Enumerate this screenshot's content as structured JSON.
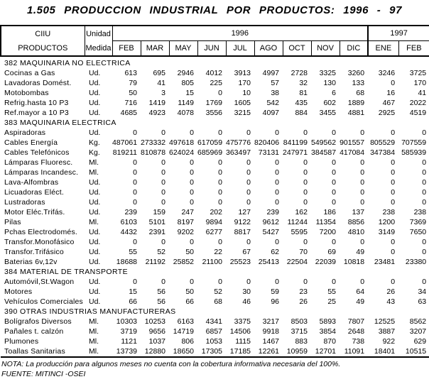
{
  "title": "1.505 PRODUCCION INDUSTRIAL POR PRODUCTOS: 1996 - 97",
  "table": {
    "header": {
      "col_products_line1": "CIIU",
      "col_products_line2": "PRODUCTOS",
      "col_unit_line1": "Unidad",
      "col_unit_line2": "Medida",
      "year_1996": "1996",
      "year_1997": "1997",
      "months_1996": [
        "FEB",
        "MAR",
        "MAY",
        "JUN",
        "JUL",
        "AGO",
        "OCT",
        "NOV",
        "DIC"
      ],
      "months_1997": [
        "ENE",
        "FEB"
      ]
    },
    "rows": [
      {
        "type": "section",
        "label": "382 MAQUINARIA NO ELECTRICA"
      },
      {
        "type": "data",
        "label": "Cocinas a Gas",
        "unit": "Ud.",
        "values": [
          613,
          695,
          2946,
          4012,
          3913,
          4997,
          2728,
          3325,
          3260,
          3246,
          3725
        ]
      },
      {
        "type": "data",
        "label": "Lavadoras Domést.",
        "unit": "Ud.",
        "values": [
          79,
          41,
          805,
          225,
          170,
          57,
          32,
          130,
          133,
          0,
          170
        ]
      },
      {
        "type": "data",
        "label": "Motobombas",
        "unit": "Ud.",
        "values": [
          50,
          3,
          15,
          0,
          10,
          38,
          81,
          6,
          68,
          16,
          41
        ]
      },
      {
        "type": "data",
        "label": "Refrig.hasta 10 P3",
        "unit": "Ud.",
        "values": [
          716,
          1419,
          1149,
          1769,
          1605,
          542,
          435,
          602,
          1889,
          467,
          2022
        ]
      },
      {
        "type": "data",
        "label": "Ref.mayor a 10 P3",
        "unit": "Ud.",
        "values": [
          4685,
          4923,
          4078,
          3556,
          3215,
          4097,
          884,
          3455,
          4881,
          2925,
          4519
        ]
      },
      {
        "type": "section",
        "label": "383 MAQUINARIA ELECTRICA"
      },
      {
        "type": "data",
        "label": "Aspiradoras",
        "unit": "Ud.",
        "values": [
          0,
          0,
          0,
          0,
          0,
          0,
          0,
          0,
          0,
          0,
          0
        ]
      },
      {
        "type": "data",
        "label": "Cables Energía",
        "unit": "Kg.",
        "values": [
          487061,
          273332,
          497618,
          617059,
          475776,
          820406,
          841199,
          549562,
          901557,
          805529,
          707559
        ]
      },
      {
        "type": "data",
        "label": "Cables Telefónicos",
        "unit": "Kg.",
        "values": [
          819211,
          810878,
          624024,
          685969,
          363497,
          73131,
          247971,
          384587,
          417084,
          347384,
          585939
        ]
      },
      {
        "type": "data",
        "label": "Lámparas Fluoresc.",
        "unit": "Ml.",
        "values": [
          0,
          0,
          0,
          0,
          0,
          0,
          0,
          0,
          0,
          0,
          0
        ]
      },
      {
        "type": "data",
        "label": "Lámparas Incandesc.",
        "unit": "Ml.",
        "values": [
          0,
          0,
          0,
          0,
          0,
          0,
          0,
          0,
          0,
          0,
          0
        ]
      },
      {
        "type": "data",
        "label": "Lava-Alfombras",
        "unit": "Ud.",
        "values": [
          0,
          0,
          0,
          0,
          0,
          0,
          0,
          0,
          0,
          0,
          0
        ]
      },
      {
        "type": "data",
        "label": "Licuadoras Eléct.",
        "unit": "Ud.",
        "values": [
          0,
          0,
          0,
          0,
          0,
          0,
          0,
          0,
          0,
          0,
          0
        ]
      },
      {
        "type": "data",
        "label": "Lustradoras",
        "unit": "Ud.",
        "values": [
          0,
          0,
          0,
          0,
          0,
          0,
          0,
          0,
          0,
          0,
          0
        ]
      },
      {
        "type": "data",
        "label": "Motor Eléc.Trifás.",
        "unit": "Ud.",
        "values": [
          239,
          159,
          247,
          202,
          127,
          239,
          162,
          186,
          137,
          238,
          238
        ]
      },
      {
        "type": "data",
        "label": "Pilas",
        "unit": "Ml.",
        "values": [
          6103,
          5101,
          8197,
          9894,
          9122,
          9612,
          11244,
          11354,
          8856,
          1200,
          7369
        ]
      },
      {
        "type": "data",
        "label": "Pchas Electrodomés.",
        "unit": "Ud.",
        "values": [
          4432,
          2391,
          9202,
          6277,
          8817,
          5427,
          5595,
          7200,
          4810,
          3149,
          7650
        ]
      },
      {
        "type": "data",
        "label": "Transfor.Monofásico",
        "unit": "Ud.",
        "values": [
          0,
          0,
          0,
          0,
          0,
          0,
          0,
          0,
          0,
          0,
          0
        ]
      },
      {
        "type": "data",
        "label": "Transfor.Trifásico",
        "unit": "Ud.",
        "values": [
          55,
          52,
          50,
          22,
          67,
          62,
          70,
          69,
          49,
          0,
          0
        ]
      },
      {
        "type": "data",
        "label": "Baterias 6v,12v",
        "unit": "Ud.",
        "values": [
          18688,
          21192,
          25852,
          21100,
          25523,
          25413,
          22504,
          22039,
          10818,
          23481,
          23380
        ]
      },
      {
        "type": "section",
        "label": "384 MATERIAL DE TRANSPORTE"
      },
      {
        "type": "data",
        "label": "Automóvil,St.Wagon",
        "unit": "Ud.",
        "values": [
          0,
          0,
          0,
          0,
          0,
          0,
          0,
          0,
          0,
          0,
          0
        ]
      },
      {
        "type": "data",
        "label": "Motores",
        "unit": "Ud.",
        "values": [
          15,
          56,
          50,
          52,
          30,
          59,
          23,
          55,
          64,
          26,
          34
        ]
      },
      {
        "type": "data",
        "label": "Vehículos Comerciales",
        "unit": "Ud.",
        "values": [
          66,
          56,
          66,
          68,
          46,
          96,
          26,
          25,
          49,
          43,
          63
        ]
      },
      {
        "type": "section",
        "label": "390 OTRAS INDUSTRIAS MANUFACTURERAS"
      },
      {
        "type": "data",
        "label": "Bolígrafos Diversos",
        "unit": "Ml.",
        "values": [
          10303,
          10253,
          6163,
          4341,
          3375,
          3217,
          8503,
          5893,
          7807,
          12525,
          8562
        ]
      },
      {
        "type": "data",
        "label": "Pañales t. calzón",
        "unit": "Ml.",
        "values": [
          3719,
          9656,
          14719,
          6857,
          14506,
          9918,
          3715,
          3854,
          2648,
          3887,
          3207
        ]
      },
      {
        "type": "data",
        "label": "Plumones",
        "unit": "Ml.",
        "values": [
          1121,
          1037,
          806,
          1053,
          1115,
          1467,
          883,
          870,
          738,
          922,
          629
        ]
      },
      {
        "type": "data",
        "label": "Toallas Sanitarias",
        "unit": "Ml.",
        "values": [
          13739,
          12880,
          18650,
          17305,
          17185,
          12261,
          10959,
          12701,
          11091,
          18401,
          10515
        ]
      }
    ]
  },
  "note": "NOTA:  La producción para algunos meses no cuenta con la cobertura informativa necesaria del 100%.",
  "source": "FUENTE: MITINCI -OSEI"
}
